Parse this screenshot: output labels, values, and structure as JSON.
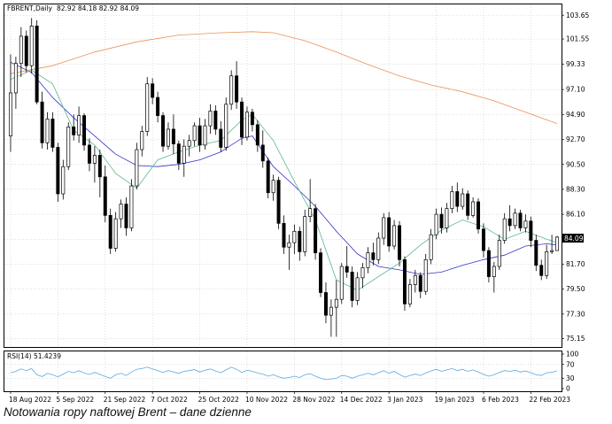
{
  "header": {
    "symbol_label": "FBRENT,Daily",
    "ohlc_label": "82.92 84.18 82.92 84.09"
  },
  "rsi_panel": {
    "label": "RSI(14) 51.4239",
    "levels": [
      "100",
      "70",
      "30",
      "0"
    ]
  },
  "price_axis": {
    "ticks": [
      "103.65",
      "101.55",
      "99.33",
      "97.10",
      "94.90",
      "92.70",
      "90.50",
      "88.30",
      "86.10",
      "84.09",
      "81.70",
      "79.50",
      "77.30",
      "75.15"
    ],
    "current_price": "84.09"
  },
  "date_axis": {
    "ticks": [
      "18 Aug 2022",
      "5 Sep 2022",
      "21 Sep 2022",
      "7 Oct 2022",
      "25 Oct 2022",
      "10 Nov 2022",
      "28 Nov 2022",
      "14 Dec 2022",
      "3 Jan 2023",
      "19 Jan 2023",
      "6 Feb 2023",
      "22 Feb 2023"
    ]
  },
  "caption": "Notowania ropy naftowej Brent – dane dzienne",
  "colors": {
    "bull": "#ffffff",
    "bear": "#000000",
    "ma_blue": "#3333cc",
    "ma_green": "#5cb88a",
    "ma_orange": "#e8915a",
    "rsi_line": "#5aa8e0",
    "grid": "#bfbfbf"
  },
  "chart_data": {
    "type": "candlestick",
    "title": "FBRENT,Daily",
    "ylim": [
      74.4,
      104.6
    ],
    "price_ticks": [
      103.65,
      101.55,
      99.33,
      97.1,
      94.9,
      92.7,
      90.5,
      88.3,
      86.1,
      83.9,
      81.7,
      79.5,
      77.3,
      75.15
    ],
    "last_close": 84.09,
    "candles": [
      {
        "o": 93.0,
        "h": 100.2,
        "l": 91.6,
        "c": 96.8
      },
      {
        "o": 96.8,
        "h": 100.0,
        "l": 95.4,
        "c": 99.4
      },
      {
        "o": 99.4,
        "h": 102.6,
        "l": 98.2,
        "c": 101.8
      },
      {
        "o": 101.8,
        "h": 102.3,
        "l": 98.6,
        "c": 99.2
      },
      {
        "o": 99.2,
        "h": 103.4,
        "l": 98.5,
        "c": 102.7
      },
      {
        "o": 102.7,
        "h": 103.2,
        "l": 95.8,
        "c": 96.0
      },
      {
        "o": 96.0,
        "h": 96.9,
        "l": 91.9,
        "c": 92.4
      },
      {
        "o": 92.4,
        "h": 95.1,
        "l": 91.8,
        "c": 94.5
      },
      {
        "o": 94.5,
        "h": 95.1,
        "l": 91.6,
        "c": 92.0
      },
      {
        "o": 92.0,
        "h": 92.4,
        "l": 87.2,
        "c": 87.9
      },
      {
        "o": 87.9,
        "h": 90.9,
        "l": 87.4,
        "c": 90.3
      },
      {
        "o": 90.3,
        "h": 94.2,
        "l": 90.0,
        "c": 93.8
      },
      {
        "o": 93.8,
        "h": 94.9,
        "l": 92.6,
        "c": 93.1
      },
      {
        "o": 93.1,
        "h": 95.6,
        "l": 92.4,
        "c": 94.8
      },
      {
        "o": 94.8,
        "h": 95.0,
        "l": 91.7,
        "c": 92.2
      },
      {
        "o": 92.2,
        "h": 92.8,
        "l": 89.9,
        "c": 90.6
      },
      {
        "o": 90.6,
        "h": 92.1,
        "l": 88.9,
        "c": 91.3
      },
      {
        "o": 91.3,
        "h": 91.8,
        "l": 87.6,
        "c": 89.4
      },
      {
        "o": 89.4,
        "h": 90.4,
        "l": 85.4,
        "c": 86.0
      },
      {
        "o": 86.0,
        "h": 86.6,
        "l": 82.6,
        "c": 83.1
      },
      {
        "o": 83.1,
        "h": 86.3,
        "l": 82.8,
        "c": 85.7
      },
      {
        "o": 85.7,
        "h": 87.4,
        "l": 84.9,
        "c": 87.0
      },
      {
        "o": 87.0,
        "h": 87.6,
        "l": 84.2,
        "c": 84.9
      },
      {
        "o": 84.9,
        "h": 89.2,
        "l": 84.6,
        "c": 88.6
      },
      {
        "o": 88.6,
        "h": 92.4,
        "l": 88.3,
        "c": 91.8
      },
      {
        "o": 91.8,
        "h": 93.9,
        "l": 91.2,
        "c": 93.4
      },
      {
        "o": 93.4,
        "h": 98.2,
        "l": 93.0,
        "c": 97.6
      },
      {
        "o": 97.6,
        "h": 98.1,
        "l": 95.8,
        "c": 96.4
      },
      {
        "o": 96.4,
        "h": 96.9,
        "l": 94.2,
        "c": 94.8
      },
      {
        "o": 94.8,
        "h": 95.1,
        "l": 91.6,
        "c": 92.1
      },
      {
        "o": 92.1,
        "h": 94.2,
        "l": 91.8,
        "c": 93.6
      },
      {
        "o": 93.6,
        "h": 94.9,
        "l": 91.4,
        "c": 92.3
      },
      {
        "o": 92.3,
        "h": 92.6,
        "l": 90.0,
        "c": 90.6
      },
      {
        "o": 90.6,
        "h": 92.7,
        "l": 89.4,
        "c": 92.1
      },
      {
        "o": 92.1,
        "h": 93.1,
        "l": 91.2,
        "c": 92.6
      },
      {
        "o": 92.6,
        "h": 94.2,
        "l": 92.1,
        "c": 93.9
      },
      {
        "o": 93.9,
        "h": 94.6,
        "l": 91.6,
        "c": 92.2
      },
      {
        "o": 92.2,
        "h": 94.5,
        "l": 91.8,
        "c": 93.9
      },
      {
        "o": 93.9,
        "h": 95.8,
        "l": 93.2,
        "c": 95.2
      },
      {
        "o": 95.2,
        "h": 95.7,
        "l": 93.1,
        "c": 93.6
      },
      {
        "o": 93.6,
        "h": 94.3,
        "l": 91.6,
        "c": 92.0
      },
      {
        "o": 92.0,
        "h": 96.4,
        "l": 91.7,
        "c": 95.8
      },
      {
        "o": 95.8,
        "h": 98.8,
        "l": 95.3,
        "c": 98.3
      },
      {
        "o": 98.3,
        "h": 99.6,
        "l": 95.4,
        "c": 96.0
      },
      {
        "o": 96.0,
        "h": 96.4,
        "l": 92.2,
        "c": 92.9
      },
      {
        "o": 92.9,
        "h": 95.6,
        "l": 92.6,
        "c": 95.1
      },
      {
        "o": 95.1,
        "h": 95.4,
        "l": 93.4,
        "c": 94.0
      },
      {
        "o": 94.0,
        "h": 94.4,
        "l": 91.6,
        "c": 92.2
      },
      {
        "o": 92.2,
        "h": 93.5,
        "l": 90.2,
        "c": 90.8
      },
      {
        "o": 90.8,
        "h": 91.1,
        "l": 87.5,
        "c": 88.0
      },
      {
        "o": 88.0,
        "h": 89.6,
        "l": 87.3,
        "c": 89.1
      },
      {
        "o": 89.1,
        "h": 89.4,
        "l": 84.8,
        "c": 85.3
      },
      {
        "o": 85.3,
        "h": 86.0,
        "l": 82.6,
        "c": 83.2
      },
      {
        "o": 83.2,
        "h": 84.3,
        "l": 81.2,
        "c": 83.6
      },
      {
        "o": 83.6,
        "h": 85.2,
        "l": 82.6,
        "c": 84.6
      },
      {
        "o": 84.6,
        "h": 85.0,
        "l": 82.0,
        "c": 82.8
      },
      {
        "o": 82.8,
        "h": 86.5,
        "l": 82.4,
        "c": 85.9
      },
      {
        "o": 85.9,
        "h": 89.2,
        "l": 85.4,
        "c": 86.6
      },
      {
        "o": 86.6,
        "h": 87.0,
        "l": 82.1,
        "c": 82.7
      },
      {
        "o": 82.7,
        "h": 83.1,
        "l": 78.8,
        "c": 79.2
      },
      {
        "o": 79.2,
        "h": 80.1,
        "l": 76.5,
        "c": 77.2
      },
      {
        "o": 77.2,
        "h": 78.6,
        "l": 75.3,
        "c": 77.9
      },
      {
        "o": 77.9,
        "h": 80.3,
        "l": 75.3,
        "c": 78.6
      },
      {
        "o": 78.6,
        "h": 81.8,
        "l": 78.2,
        "c": 81.5
      },
      {
        "o": 81.5,
        "h": 83.3,
        "l": 80.5,
        "c": 81.0
      },
      {
        "o": 81.0,
        "h": 81.5,
        "l": 77.9,
        "c": 78.5
      },
      {
        "o": 78.5,
        "h": 81.0,
        "l": 78.1,
        "c": 80.5
      },
      {
        "o": 80.5,
        "h": 81.8,
        "l": 79.6,
        "c": 81.4
      },
      {
        "o": 81.4,
        "h": 83.2,
        "l": 80.9,
        "c": 82.7
      },
      {
        "o": 82.7,
        "h": 83.6,
        "l": 81.6,
        "c": 82.1
      },
      {
        "o": 82.1,
        "h": 84.5,
        "l": 81.7,
        "c": 84.0
      },
      {
        "o": 84.0,
        "h": 86.2,
        "l": 83.4,
        "c": 85.8
      },
      {
        "o": 85.8,
        "h": 86.3,
        "l": 82.8,
        "c": 83.3
      },
      {
        "o": 83.3,
        "h": 85.6,
        "l": 83.0,
        "c": 85.1
      },
      {
        "o": 85.1,
        "h": 85.5,
        "l": 81.5,
        "c": 82.1
      },
      {
        "o": 82.1,
        "h": 82.4,
        "l": 77.6,
        "c": 78.2
      },
      {
        "o": 78.2,
        "h": 80.4,
        "l": 77.9,
        "c": 79.9
      },
      {
        "o": 79.9,
        "h": 81.2,
        "l": 79.2,
        "c": 80.7
      },
      {
        "o": 80.7,
        "h": 81.0,
        "l": 78.7,
        "c": 79.3
      },
      {
        "o": 79.3,
        "h": 82.6,
        "l": 79.0,
        "c": 82.1
      },
      {
        "o": 82.1,
        "h": 84.8,
        "l": 81.7,
        "c": 84.3
      },
      {
        "o": 84.3,
        "h": 86.6,
        "l": 83.9,
        "c": 86.1
      },
      {
        "o": 86.1,
        "h": 86.7,
        "l": 84.4,
        "c": 84.9
      },
      {
        "o": 84.9,
        "h": 87.1,
        "l": 84.5,
        "c": 86.6
      },
      {
        "o": 86.6,
        "h": 88.6,
        "l": 86.2,
        "c": 88.1
      },
      {
        "o": 88.1,
        "h": 88.9,
        "l": 86.3,
        "c": 86.8
      },
      {
        "o": 86.8,
        "h": 88.4,
        "l": 86.5,
        "c": 87.9
      },
      {
        "o": 87.9,
        "h": 88.2,
        "l": 85.6,
        "c": 86.0
      },
      {
        "o": 86.0,
        "h": 87.6,
        "l": 85.8,
        "c": 87.2
      },
      {
        "o": 87.2,
        "h": 87.5,
        "l": 84.4,
        "c": 84.8
      },
      {
        "o": 84.8,
        "h": 85.3,
        "l": 82.3,
        "c": 82.9
      },
      {
        "o": 82.9,
        "h": 83.2,
        "l": 80.1,
        "c": 80.6
      },
      {
        "o": 80.6,
        "h": 81.9,
        "l": 79.2,
        "c": 81.5
      },
      {
        "o": 81.5,
        "h": 84.3,
        "l": 81.2,
        "c": 83.8
      },
      {
        "o": 83.8,
        "h": 86.2,
        "l": 83.5,
        "c": 85.7
      },
      {
        "o": 85.7,
        "h": 86.9,
        "l": 84.6,
        "c": 85.1
      },
      {
        "o": 85.1,
        "h": 86.6,
        "l": 84.8,
        "c": 86.2
      },
      {
        "o": 86.2,
        "h": 86.5,
        "l": 84.6,
        "c": 84.9
      },
      {
        "o": 84.9,
        "h": 86.1,
        "l": 84.5,
        "c": 85.5
      },
      {
        "o": 85.5,
        "h": 85.9,
        "l": 83.2,
        "c": 83.8
      },
      {
        "o": 83.8,
        "h": 84.3,
        "l": 81.1,
        "c": 81.6
      },
      {
        "o": 81.6,
        "h": 82.1,
        "l": 80.3,
        "c": 80.7
      },
      {
        "o": 80.7,
        "h": 83.4,
        "l": 80.4,
        "c": 82.8
      },
      {
        "o": 82.8,
        "h": 84.3,
        "l": 82.6,
        "c": 82.9
      },
      {
        "o": 82.9,
        "h": 84.18,
        "l": 82.9,
        "c": 84.09
      }
    ],
    "series": [
      {
        "name": "",
        "color_key": "ma_blue",
        "points": [
          [
            0,
            99.5
          ],
          [
            4,
            98.6
          ],
          [
            8,
            96.4
          ],
          [
            12,
            94.6
          ],
          [
            16,
            93.0
          ],
          [
            20,
            91.4
          ],
          [
            24,
            90.4
          ],
          [
            28,
            90.3
          ],
          [
            32,
            90.5
          ],
          [
            36,
            90.9
          ],
          [
            40,
            91.6
          ],
          [
            44,
            92.8
          ],
          [
            46,
            93.0
          ],
          [
            50,
            90.3
          ],
          [
            54,
            88.6
          ],
          [
            58,
            86.8
          ],
          [
            62,
            84.6
          ],
          [
            66,
            82.6
          ],
          [
            70,
            81.5
          ],
          [
            74,
            81.2
          ],
          [
            78,
            80.8
          ],
          [
            82,
            81.0
          ],
          [
            86,
            81.6
          ],
          [
            90,
            82.1
          ],
          [
            94,
            82.5
          ],
          [
            98,
            83.3
          ],
          [
            102,
            83.5
          ],
          [
            104,
            83.4
          ]
        ]
      },
      {
        "name": "",
        "color_key": "ma_green",
        "points": [
          [
            0,
            98.0
          ],
          [
            4,
            98.8
          ],
          [
            8,
            97.6
          ],
          [
            12,
            93.5
          ],
          [
            16,
            92.2
          ],
          [
            20,
            89.7
          ],
          [
            24,
            88.4
          ],
          [
            28,
            90.9
          ],
          [
            32,
            91.6
          ],
          [
            36,
            92.2
          ],
          [
            40,
            92.6
          ],
          [
            44,
            94.4
          ],
          [
            46,
            94.9
          ],
          [
            50,
            92.6
          ],
          [
            54,
            89.0
          ],
          [
            58,
            85.6
          ],
          [
            62,
            80.3
          ],
          [
            66,
            79.4
          ],
          [
            70,
            80.6
          ],
          [
            74,
            81.8
          ],
          [
            78,
            83.4
          ],
          [
            82,
            84.7
          ],
          [
            86,
            85.6
          ],
          [
            90,
            85.0
          ],
          [
            94,
            83.9
          ],
          [
            98,
            84.6
          ],
          [
            102,
            83.9
          ],
          [
            104,
            83.6
          ]
        ]
      },
      {
        "name": "",
        "color_key": "ma_orange",
        "points": [
          [
            0,
            98.5
          ],
          [
            8,
            99.2
          ],
          [
            16,
            100.4
          ],
          [
            24,
            101.3
          ],
          [
            32,
            101.9
          ],
          [
            40,
            102.1
          ],
          [
            46,
            102.2
          ],
          [
            50,
            102.1
          ],
          [
            56,
            101.4
          ],
          [
            62,
            100.4
          ],
          [
            68,
            99.3
          ],
          [
            74,
            98.3
          ],
          [
            80,
            97.5
          ],
          [
            86,
            96.9
          ],
          [
            92,
            96.1
          ],
          [
            98,
            95.1
          ],
          [
            104,
            94.1
          ]
        ]
      }
    ],
    "rsi": {
      "label": "RSI(14)",
      "levels": [
        100,
        70,
        30,
        0
      ],
      "values": [
        46,
        50,
        57,
        52,
        58,
        40,
        35,
        44,
        40,
        34,
        42,
        50,
        46,
        52,
        45,
        41,
        47,
        41,
        35,
        30,
        40,
        44,
        38,
        48,
        56,
        58,
        62,
        57,
        52,
        47,
        52,
        48,
        44,
        50,
        52,
        55,
        48,
        53,
        57,
        51,
        46,
        54,
        62,
        56,
        47,
        53,
        50,
        45,
        42,
        36,
        40,
        34,
        30,
        32,
        36,
        32,
        40,
        43,
        36,
        30,
        26,
        28,
        30,
        38,
        36,
        30,
        36,
        40,
        44,
        40,
        46,
        52,
        44,
        50,
        41,
        33,
        38,
        42,
        38,
        45,
        51,
        56,
        50,
        54,
        58,
        52,
        56,
        50,
        54,
        48,
        41,
        36,
        40,
        47,
        52,
        50,
        53,
        48,
        51,
        46,
        40,
        38,
        46,
        47,
        51.42
      ]
    }
  }
}
